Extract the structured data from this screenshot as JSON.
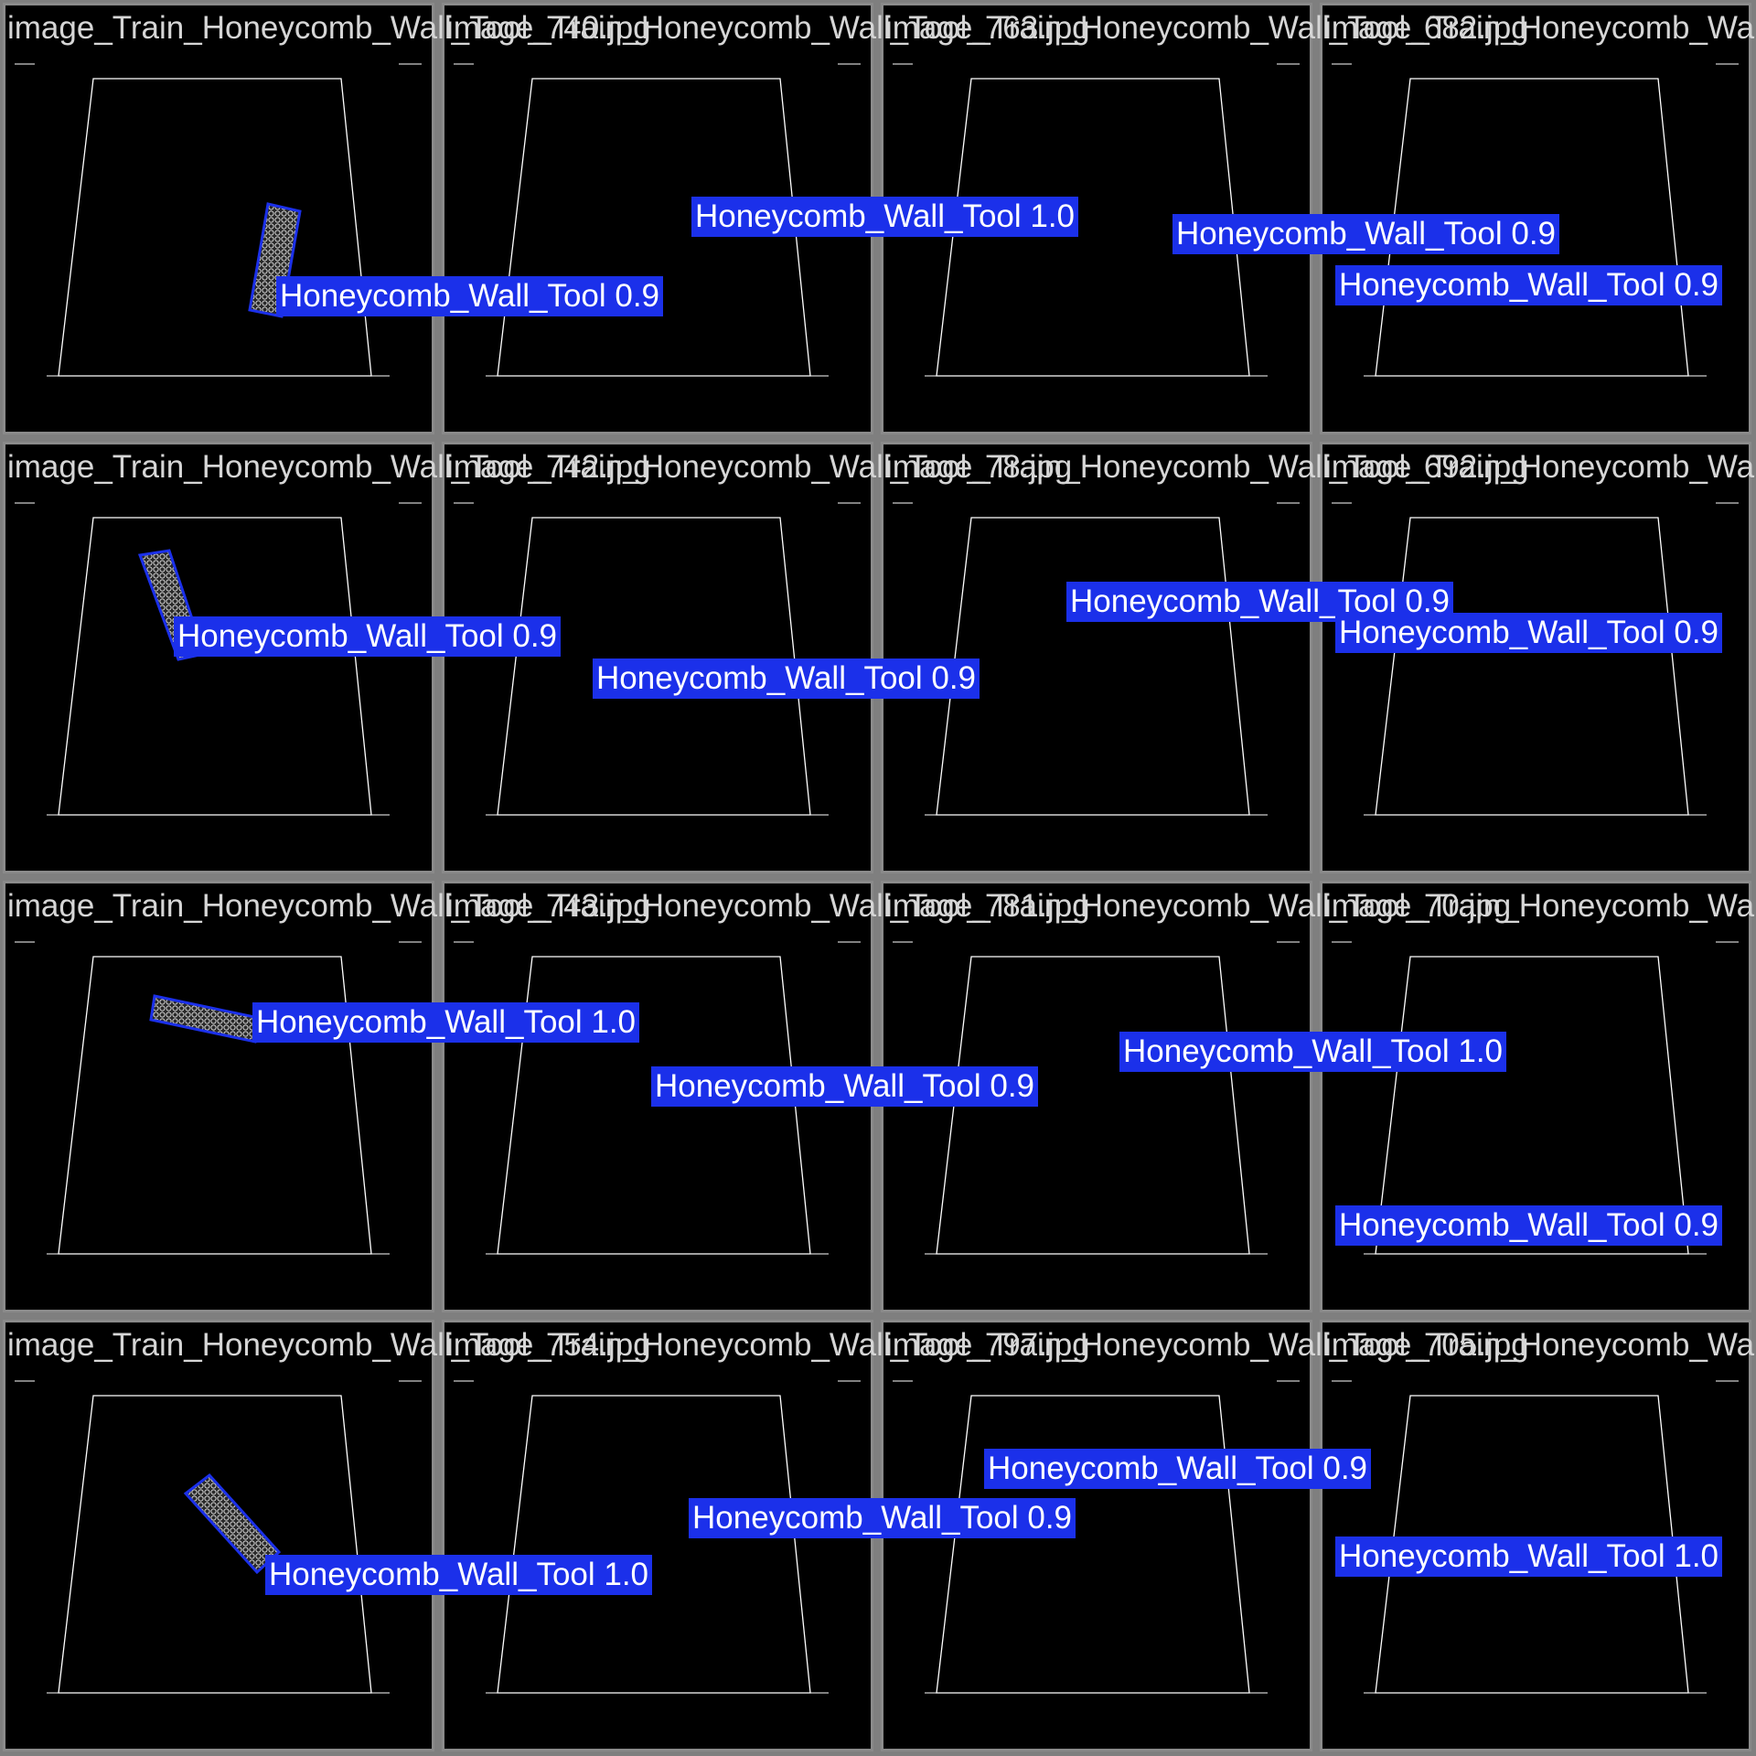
{
  "tiles": [
    {
      "title": "image_Train_Honeycomb_Wall_Tool_740.jpg",
      "detections": [
        {
          "label": "Honeycomb_Wall_Tool",
          "score": "0.9"
        }
      ]
    },
    {
      "title": "image_Train_Honeycomb_Wall_Tool_763.jpg",
      "detections": [
        {
          "label": "Honeycomb_Wall_Tool",
          "score": "1.0"
        }
      ]
    },
    {
      "title": "image_Train_Honeycomb_Wall_Tool_682.jpg",
      "detections": [
        {
          "label": "Honeycomb_Wall_Tool",
          "score": "0.9"
        }
      ]
    },
    {
      "title": "image_Train_Honeycomb_Wall_Tool_",
      "detections": [
        {
          "label": "Honeycomb_Wall_Tool",
          "score": "0.9"
        }
      ]
    },
    {
      "title": "image_Train_Honeycomb_Wall_Tool_742.jpg",
      "detections": [
        {
          "label": "Honeycomb_Wall_Tool",
          "score": "0.9"
        }
      ]
    },
    {
      "title": "image_Train_Honeycomb_Wall_Tool_78.jpg",
      "detections": [
        {
          "label": "Honeycomb_Wall_Tool",
          "score": "0.9"
        }
      ]
    },
    {
      "title": "image_Train_Honeycomb_Wall_Tool_692.jpg",
      "detections": [
        {
          "label": "Honeycomb_Wall_Tool",
          "score": "0.9"
        }
      ]
    },
    {
      "title": "image_Train_Honeycomb_Wall_Tool_",
      "detections": [
        {
          "label": "Honeycomb_Wall_Tool",
          "score": "0.9"
        }
      ]
    },
    {
      "title": "image_Train_Honeycomb_Wall_Tool_743.jpg",
      "detections": [
        {
          "label": "Honeycomb_Wall_Tool",
          "score": "1.0"
        }
      ]
    },
    {
      "title": "image_Train_Honeycomb_Wall_Tool_781.jpg",
      "detections": [
        {
          "label": "Honeycomb_Wall_Tool",
          "score": "0.9"
        }
      ]
    },
    {
      "title": "image_Train_Honeycomb_Wall_Tool_70.jpg",
      "detections": [
        {
          "label": "Honeycomb_Wall_Tool",
          "score": "1.0"
        }
      ]
    },
    {
      "title": "image_Train_Honeycomb_Wall_Tool_",
      "detections": [
        {
          "label": "Honeycomb_Wall_Tool",
          "score": "0.9"
        }
      ]
    },
    {
      "title": "image_Train_Honeycomb_Wall_Tool_754.jpg",
      "detections": [
        {
          "label": "Honeycomb_Wall_Tool",
          "score": "1.0"
        }
      ]
    },
    {
      "title": "image_Train_Honeycomb_Wall_Tool_797.jpg",
      "detections": [
        {
          "label": "Honeycomb_Wall_Tool",
          "score": "0.9"
        }
      ]
    },
    {
      "title": "image_Train_Honeycomb_Wall_Tool_705.jpg",
      "detections": [
        {
          "label": "Honeycomb_Wall_Tool",
          "score": "0.9"
        }
      ]
    },
    {
      "title": "image_Train_Honeycomb_Wall_Tool_",
      "detections": [
        {
          "label": "Honeycomb_Wall_Tool",
          "score": "1.0"
        }
      ]
    }
  ],
  "colors": {
    "box": "#1b30ea",
    "label_text": "#ffffff",
    "title_text": "#d6d6d6",
    "tile_bg": "#000000",
    "outline": "#ffffff"
  }
}
